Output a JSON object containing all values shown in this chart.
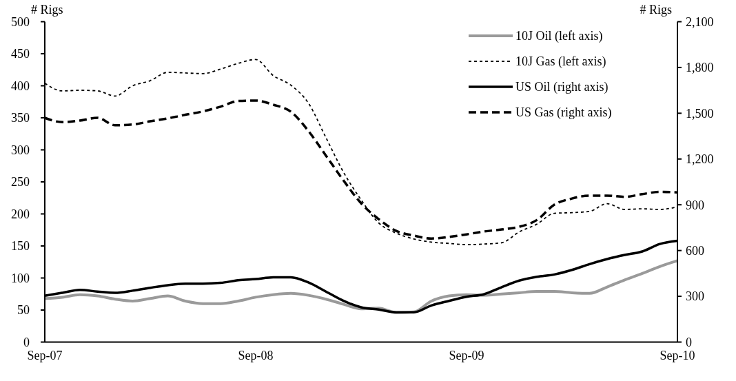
{
  "chart_data": {
    "type": "line",
    "ylabel": "# Rigs",
    "y2label": "# Rigs",
    "categories": [
      "Sep-07",
      null,
      null,
      null,
      null,
      null,
      null,
      null,
      null,
      null,
      null,
      null,
      "Sep-08",
      null,
      null,
      null,
      null,
      null,
      null,
      null,
      null,
      null,
      null,
      null,
      "Sep-09",
      null,
      null,
      null,
      null,
      null,
      null,
      null,
      null,
      null,
      null,
      null,
      "Sep-10"
    ],
    "series": [
      {
        "name": "10J Oil (left axis)",
        "color": "#9a9a9a",
        "line_style": "solid",
        "axis": "y",
        "values": [
          68,
          70,
          74,
          72,
          67,
          64,
          68,
          72,
          64,
          60,
          60,
          64,
          70,
          74,
          76,
          73,
          67,
          59,
          52,
          53,
          46,
          47,
          64,
          72,
          74,
          73,
          75,
          77,
          79,
          79,
          77,
          76,
          86,
          97,
          107,
          118,
          127
        ]
      },
      {
        "name": "10J Gas (left axis)",
        "color": "#000000",
        "line_style": "dashed",
        "axis": "y",
        "values": [
          404,
          392,
          393,
          392,
          384,
          400,
          408,
          421,
          420,
          419,
          426,
          435,
          441,
          416,
          401,
          373,
          319,
          265,
          222,
          186,
          170,
          161,
          156,
          154,
          152,
          153,
          155,
          172,
          184,
          201,
          202,
          204,
          216,
          207,
          208,
          207,
          211
        ]
      },
      {
        "name": "US Oil (right axis)",
        "color": "#000000",
        "line_style": "solid",
        "axis": "y2",
        "values": [
          304,
          323,
          342,
          331,
          323,
          337,
          356,
          373,
          383,
          383,
          388,
          405,
          413,
          424,
          425,
          391,
          331,
          270,
          228,
          213,
          195,
          195,
          240,
          270,
          297,
          314,
          360,
          403,
          428,
          443,
          473,
          511,
          544,
          571,
          594,
          643,
          664
        ]
      },
      {
        "name": "US Gas (right axis)",
        "color": "#000000",
        "line_style": "dashed",
        "axis": "y2",
        "values": [
          1470,
          1442,
          1452,
          1470,
          1421,
          1426,
          1447,
          1466,
          1490,
          1512,
          1543,
          1580,
          1583,
          1556,
          1510,
          1384,
          1222,
          1059,
          910,
          806,
          729,
          698,
          679,
          689,
          706,
          725,
          738,
          756,
          800,
          901,
          941,
          960,
          960,
          952,
          970,
          985,
          981
        ]
      }
    ],
    "ylim": [
      0,
      500
    ],
    "yticks": [
      0,
      50,
      100,
      150,
      200,
      250,
      300,
      350,
      400,
      450,
      500
    ],
    "y2lim": [
      0,
      2100
    ],
    "y2ticks": [
      {
        "value": 0,
        "label": "0"
      },
      {
        "value": 300,
        "label": "300"
      },
      {
        "value": 600,
        "label": "600"
      },
      {
        "value": 900,
        "label": "900"
      },
      {
        "value": 1200,
        "label": "1,200"
      },
      {
        "value": 1500,
        "label": "1,500"
      },
      {
        "value": 1800,
        "label": "1,800"
      },
      {
        "value": 2100,
        "label": "2,100"
      }
    ],
    "legend": "top right",
    "grid": false
  }
}
